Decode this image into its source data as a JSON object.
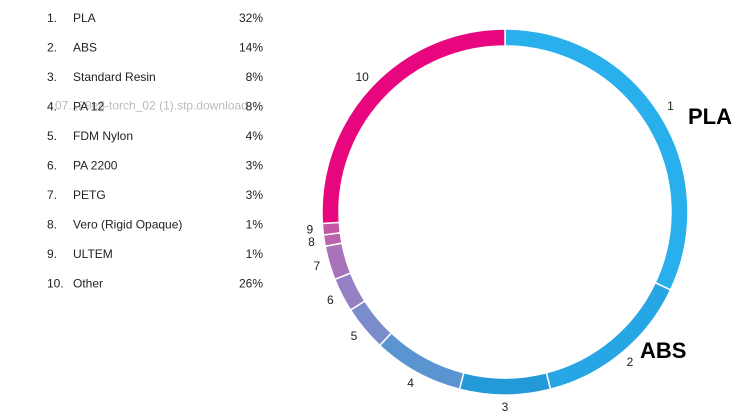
{
  "chart_data": {
    "type": "donut",
    "list_numbers": [
      "1.",
      "2.",
      "3.",
      "4.",
      "5.",
      "6.",
      "7.",
      "8.",
      "9.",
      "10."
    ],
    "categories": [
      "PLA",
      "ABS",
      "Standard Resin",
      "PA 12",
      "FDM Nylon",
      "PA 2200",
      "PETG",
      "Vero (Rigid Opaque)",
      "ULTEM",
      "Other"
    ],
    "values": [
      32,
      14,
      8,
      8,
      4,
      3,
      3,
      1,
      1,
      26
    ],
    "value_labels": [
      "32%",
      "14%",
      "8%",
      "8%",
      "4%",
      "3%",
      "3%",
      "1%",
      "1%",
      "26%"
    ],
    "slice_labels": [
      "1",
      "2",
      "3",
      "4",
      "5",
      "6",
      "7",
      "8",
      "9",
      "10"
    ],
    "colors": [
      "#29b0ec",
      "#27a6e6",
      "#2399d8",
      "#5a95d1",
      "#7b8ccc",
      "#9580c4",
      "#a973b9",
      "#b964ad",
      "#c657a6",
      "#e8067f"
    ],
    "annotations": [
      "PLA",
      "ABS"
    ],
    "overlay_text": "07...29e8-torch_02 (1).stp.download"
  }
}
